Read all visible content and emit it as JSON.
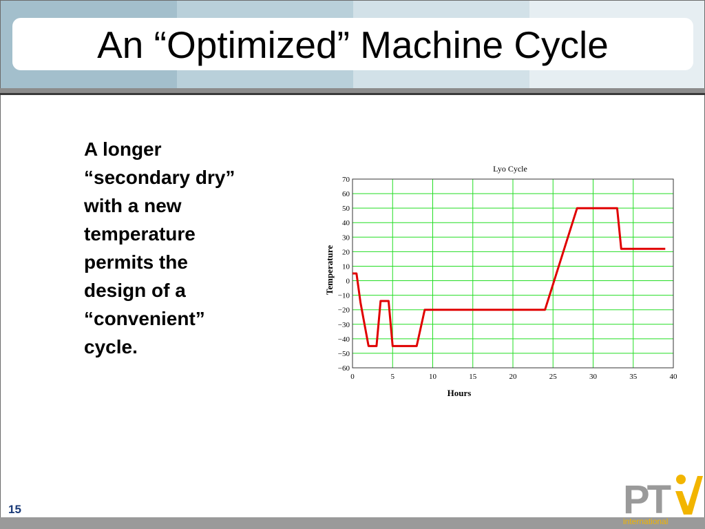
{
  "slide": {
    "title": "An “Optimized” Machine Cycle",
    "page_number": "15"
  },
  "body": {
    "lines": [
      "A longer",
      "“secondary dry”",
      "with a new",
      "temperature",
      "permits the",
      "design of a",
      "“convenient”",
      "cycle."
    ]
  },
  "logo": {
    "letters": "PTi",
    "sub": "international",
    "colors": {
      "letters": "#9a9a9a",
      "accent": "#f2b500"
    }
  },
  "colors": {
    "grid": "#22dd22",
    "line": "#e00000"
  },
  "chart_data": {
    "type": "line",
    "title": "Lyo Cycle",
    "xlabel": "Hours",
    "ylabel": "Temperature",
    "xlim": [
      0,
      40
    ],
    "ylim": [
      -60,
      70
    ],
    "xticks": [
      0,
      5,
      10,
      15,
      20,
      25,
      30,
      35,
      40
    ],
    "yticks": [
      70,
      60,
      50,
      40,
      30,
      20,
      10,
      0,
      -10,
      -20,
      -30,
      -40,
      -50,
      -60
    ],
    "grid": true,
    "series": [
      {
        "x": [
          0,
          0.5,
          1,
          2,
          3,
          3.5,
          4.5,
          5,
          8,
          9,
          24,
          28,
          33,
          33.5,
          39
        ],
        "y": [
          5,
          5,
          -15,
          -45,
          -45,
          -14,
          -14,
          -45,
          -45,
          -20,
          -20,
          50,
          50,
          22,
          22
        ]
      }
    ]
  }
}
